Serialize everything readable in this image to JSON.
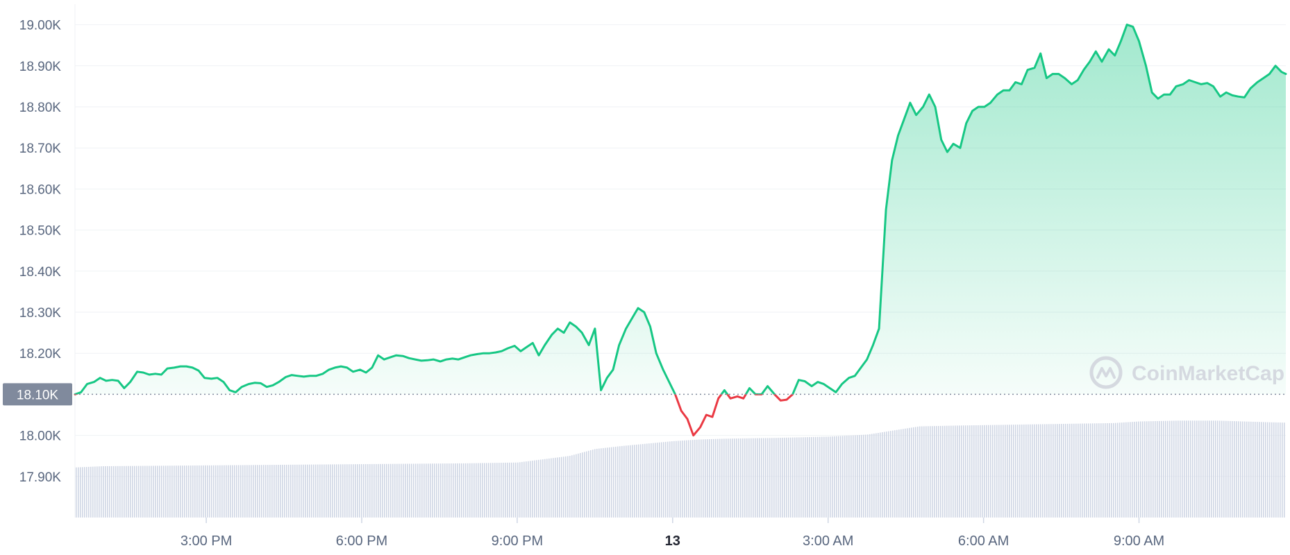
{
  "chart_data": {
    "type": "area",
    "watermark": "CoinMarketCap",
    "reference_label": "18.10K",
    "reference_value": 18.1,
    "colors": {
      "up": "#16c784",
      "down": "#ea3943",
      "volume": "#cfd6e4",
      "grid": "#eff2f5",
      "reference_box": "#808a9d",
      "axis_text": "#58667e"
    },
    "y_axis": {
      "unit": "K",
      "range": [
        17.8,
        19.05
      ],
      "ticks": [
        {
          "value": 17.9,
          "label": "17.90K"
        },
        {
          "value": 18.0,
          "label": "18.00K"
        },
        {
          "value": 18.2,
          "label": "18.20K"
        },
        {
          "value": 18.3,
          "label": "18.30K"
        },
        {
          "value": 18.4,
          "label": "18.40K"
        },
        {
          "value": 18.5,
          "label": "18.50K"
        },
        {
          "value": 18.6,
          "label": "18.60K"
        },
        {
          "value": 18.7,
          "label": "18.70K"
        },
        {
          "value": 18.8,
          "label": "18.80K"
        },
        {
          "value": 18.9,
          "label": "18.90K"
        },
        {
          "value": 19.0,
          "label": "19.00K"
        }
      ]
    },
    "x_axis": {
      "range": [
        "12 12:28",
        "13 11:50"
      ],
      "ticks": [
        {
          "time": "12 15:00",
          "label": "3:00 PM",
          "bold": false
        },
        {
          "time": "12 18:00",
          "label": "6:00 PM",
          "bold": false
        },
        {
          "time": "12 21:00",
          "label": "9:00 PM",
          "bold": false
        },
        {
          "time": "13 00:00",
          "label": "13",
          "bold": true
        },
        {
          "time": "13 03:00",
          "label": "3:00 AM",
          "bold": false
        },
        {
          "time": "13 06:00",
          "label": "6:00 AM",
          "bold": false
        },
        {
          "time": "13 09:00",
          "label": "9:00 AM",
          "bold": false
        }
      ]
    },
    "series": [
      {
        "values_unit": "K",
        "points": [
          [
            "12 12:28",
            18.1
          ],
          [
            "12 12:35",
            18.105
          ],
          [
            "12 12:42",
            18.125
          ],
          [
            "12 12:50",
            18.13
          ],
          [
            "12 12:57",
            18.14
          ],
          [
            "12 13:04",
            18.133
          ],
          [
            "12 13:11",
            18.135
          ],
          [
            "12 13:18",
            18.133
          ],
          [
            "12 13:25",
            18.115
          ],
          [
            "12 13:32",
            18.13
          ],
          [
            "12 13:40",
            18.155
          ],
          [
            "12 13:47",
            18.153
          ],
          [
            "12 13:54",
            18.148
          ],
          [
            "12 14:01",
            18.15
          ],
          [
            "12 14:08",
            18.148
          ],
          [
            "12 14:15",
            18.163
          ],
          [
            "12 14:23",
            18.165
          ],
          [
            "12 14:30",
            18.168
          ],
          [
            "12 14:37",
            18.168
          ],
          [
            "12 14:44",
            18.165
          ],
          [
            "12 14:51",
            18.158
          ],
          [
            "12 14:58",
            18.14
          ],
          [
            "12 15:06",
            18.138
          ],
          [
            "12 15:13",
            18.14
          ],
          [
            "12 15:20",
            18.13
          ],
          [
            "12 15:27",
            18.11
          ],
          [
            "12 15:34",
            18.105
          ],
          [
            "12 15:41",
            18.118
          ],
          [
            "12 15:49",
            18.125
          ],
          [
            "12 15:56",
            18.128
          ],
          [
            "12 16:03",
            18.127
          ],
          [
            "12 16:10",
            18.118
          ],
          [
            "12 16:17",
            18.122
          ],
          [
            "12 16:24",
            18.13
          ],
          [
            "12 16:32",
            18.142
          ],
          [
            "12 16:39",
            18.147
          ],
          [
            "12 16:46",
            18.145
          ],
          [
            "12 16:53",
            18.143
          ],
          [
            "12 17:00",
            18.145
          ],
          [
            "12 17:07",
            18.145
          ],
          [
            "12 17:15",
            18.15
          ],
          [
            "12 17:22",
            18.16
          ],
          [
            "12 17:29",
            18.165
          ],
          [
            "12 17:36",
            18.168
          ],
          [
            "12 17:43",
            18.165
          ],
          [
            "12 17:50",
            18.155
          ],
          [
            "12 17:58",
            18.16
          ],
          [
            "12 18:05",
            18.153
          ],
          [
            "12 18:12",
            18.165
          ],
          [
            "12 18:19",
            18.195
          ],
          [
            "12 18:26",
            18.185
          ],
          [
            "12 18:33",
            18.19
          ],
          [
            "12 18:40",
            18.195
          ],
          [
            "12 18:48",
            18.193
          ],
          [
            "12 18:55",
            18.188
          ],
          [
            "12 19:02",
            18.185
          ],
          [
            "12 19:09",
            18.182
          ],
          [
            "12 19:16",
            18.183
          ],
          [
            "12 19:23",
            18.185
          ],
          [
            "12 19:31",
            18.18
          ],
          [
            "12 19:38",
            18.185
          ],
          [
            "12 19:45",
            18.187
          ],
          [
            "12 19:52",
            18.185
          ],
          [
            "12 19:59",
            18.19
          ],
          [
            "12 20:06",
            18.195
          ],
          [
            "12 20:14",
            18.198
          ],
          [
            "12 20:21",
            18.2
          ],
          [
            "12 20:28",
            18.2
          ],
          [
            "12 20:35",
            18.202
          ],
          [
            "12 20:42",
            18.205
          ],
          [
            "12 20:49",
            18.212
          ],
          [
            "12 20:57",
            18.218
          ],
          [
            "12 21:04",
            18.205
          ],
          [
            "12 21:11",
            18.215
          ],
          [
            "12 21:18",
            18.225
          ],
          [
            "12 21:25",
            18.195
          ],
          [
            "12 21:32",
            18.22
          ],
          [
            "12 21:40",
            18.245
          ],
          [
            "12 21:47",
            18.26
          ],
          [
            "12 21:54",
            18.25
          ],
          [
            "12 22:01",
            18.275
          ],
          [
            "12 22:08",
            18.265
          ],
          [
            "12 22:15",
            18.25
          ],
          [
            "12 22:23",
            18.22
          ],
          [
            "12 22:30",
            18.26
          ],
          [
            "12 22:37",
            18.11
          ],
          [
            "12 22:44",
            18.14
          ],
          [
            "12 22:51",
            18.16
          ],
          [
            "12 22:58",
            18.22
          ],
          [
            "12 23:06",
            18.26
          ],
          [
            "12 23:13",
            18.285
          ],
          [
            "12 23:20",
            18.31
          ],
          [
            "12 23:27",
            18.3
          ],
          [
            "12 23:34",
            18.265
          ],
          [
            "12 23:41",
            18.2
          ],
          [
            "12 23:49",
            18.16
          ],
          [
            "12 23:56",
            18.13
          ],
          [
            "13 00:03",
            18.1
          ],
          [
            "13 00:10",
            18.06
          ],
          [
            "13 00:17",
            18.04
          ],
          [
            "13 00:24",
            18.0
          ],
          [
            "13 00:32",
            18.02
          ],
          [
            "13 00:39",
            18.05
          ],
          [
            "13 00:46",
            18.045
          ],
          [
            "13 00:53",
            18.09
          ],
          [
            "13 01:00",
            18.11
          ],
          [
            "13 01:07",
            18.09
          ],
          [
            "13 01:15",
            18.095
          ],
          [
            "13 01:22",
            18.09
          ],
          [
            "13 01:29",
            18.115
          ],
          [
            "13 01:36",
            18.1
          ],
          [
            "13 01:43",
            18.1
          ],
          [
            "13 01:50",
            18.12
          ],
          [
            "13 01:58",
            18.1
          ],
          [
            "13 02:05",
            18.085
          ],
          [
            "13 02:12",
            18.087
          ],
          [
            "13 02:19",
            18.1
          ],
          [
            "13 02:26",
            18.135
          ],
          [
            "13 02:33",
            18.132
          ],
          [
            "13 02:41",
            18.12
          ],
          [
            "13 02:48",
            18.13
          ],
          [
            "13 02:55",
            18.125
          ],
          [
            "13 03:02",
            18.115
          ],
          [
            "13 03:09",
            18.105
          ],
          [
            "13 03:16",
            18.125
          ],
          [
            "13 03:24",
            18.14
          ],
          [
            "13 03:31",
            18.145
          ],
          [
            "13 03:38",
            18.165
          ],
          [
            "13 03:45",
            18.185
          ],
          [
            "13 03:52",
            18.22
          ],
          [
            "13 03:59",
            18.26
          ],
          [
            "13 04:07",
            18.55
          ],
          [
            "13 04:14",
            18.67
          ],
          [
            "13 04:21",
            18.73
          ],
          [
            "13 04:28",
            18.77
          ],
          [
            "13 04:35",
            18.81
          ],
          [
            "13 04:42",
            18.78
          ],
          [
            "13 04:50",
            18.8
          ],
          [
            "13 04:57",
            18.83
          ],
          [
            "13 05:04",
            18.8
          ],
          [
            "13 05:11",
            18.72
          ],
          [
            "13 05:18",
            18.69
          ],
          [
            "13 05:25",
            18.71
          ],
          [
            "13 05:33",
            18.7
          ],
          [
            "13 05:40",
            18.76
          ],
          [
            "13 05:47",
            18.79
          ],
          [
            "13 05:54",
            18.8
          ],
          [
            "13 06:01",
            18.8
          ],
          [
            "13 06:08",
            18.81
          ],
          [
            "13 06:16",
            18.83
          ],
          [
            "13 06:23",
            18.84
          ],
          [
            "13 06:30",
            18.84
          ],
          [
            "13 06:37",
            18.86
          ],
          [
            "13 06:44",
            18.855
          ],
          [
            "13 06:51",
            18.89
          ],
          [
            "13 06:59",
            18.895
          ],
          [
            "13 07:06",
            18.93
          ],
          [
            "13 07:13",
            18.87
          ],
          [
            "13 07:20",
            18.88
          ],
          [
            "13 07:27",
            18.88
          ],
          [
            "13 07:34",
            18.87
          ],
          [
            "13 07:42",
            18.855
          ],
          [
            "13 07:49",
            18.865
          ],
          [
            "13 07:56",
            18.89
          ],
          [
            "13 08:03",
            18.91
          ],
          [
            "13 08:10",
            18.935
          ],
          [
            "13 08:17",
            18.91
          ],
          [
            "13 08:25",
            18.94
          ],
          [
            "13 08:32",
            18.925
          ],
          [
            "13 08:39",
            18.96
          ],
          [
            "13 08:46",
            19.0
          ],
          [
            "13 08:53",
            18.995
          ],
          [
            "13 09:00",
            18.96
          ],
          [
            "13 09:08",
            18.9
          ],
          [
            "13 09:15",
            18.835
          ],
          [
            "13 09:22",
            18.82
          ],
          [
            "13 09:29",
            18.83
          ],
          [
            "13 09:36",
            18.83
          ],
          [
            "13 09:43",
            18.85
          ],
          [
            "13 09:51",
            18.855
          ],
          [
            "13 09:58",
            18.865
          ],
          [
            "13 10:05",
            18.86
          ],
          [
            "13 10:12",
            18.855
          ],
          [
            "13 10:19",
            18.858
          ],
          [
            "13 10:26",
            18.85
          ],
          [
            "13 10:34",
            18.825
          ],
          [
            "13 10:41",
            18.835
          ],
          [
            "13 10:48",
            18.828
          ],
          [
            "13 10:55",
            18.825
          ],
          [
            "13 11:02",
            18.823
          ],
          [
            "13 11:09",
            18.845
          ],
          [
            "13 11:17",
            18.86
          ],
          [
            "13 11:24",
            18.87
          ],
          [
            "13 11:31",
            18.88
          ],
          [
            "13 11:38",
            18.9
          ],
          [
            "13 11:45",
            18.885
          ],
          [
            "13 11:50",
            18.88
          ]
        ]
      }
    ],
    "volume": {
      "profile": [
        [
          "12 12:28",
          0.0
        ],
        [
          "12 13:00",
          0.003
        ],
        [
          "12 14:00",
          0.004
        ],
        [
          "12 15:00",
          0.005
        ],
        [
          "12 16:00",
          0.006
        ],
        [
          "12 17:00",
          0.007
        ],
        [
          "12 18:00",
          0.008
        ],
        [
          "12 19:00",
          0.009
        ],
        [
          "12 20:00",
          0.01
        ],
        [
          "12 21:00",
          0.012
        ],
        [
          "12 21:30",
          0.02
        ],
        [
          "12 22:00",
          0.028
        ],
        [
          "12 22:30",
          0.045
        ],
        [
          "12 23:00",
          0.052
        ],
        [
          "12 23:30",
          0.058
        ],
        [
          "13 00:00",
          0.064
        ],
        [
          "13 00:30",
          0.068
        ],
        [
          "13 01:00",
          0.07
        ],
        [
          "13 02:00",
          0.072
        ],
        [
          "13 03:00",
          0.075
        ],
        [
          "13 03:45",
          0.08
        ],
        [
          "13 04:15",
          0.09
        ],
        [
          "13 04:45",
          0.1
        ],
        [
          "13 05:30",
          0.102
        ],
        [
          "13 06:30",
          0.104
        ],
        [
          "13 07:30",
          0.106
        ],
        [
          "13 08:30",
          0.108
        ],
        [
          "13 09:00",
          0.112
        ],
        [
          "13 09:45",
          0.114
        ],
        [
          "13 10:30",
          0.114
        ],
        [
          "13 11:00",
          0.112
        ],
        [
          "13 11:30",
          0.11
        ],
        [
          "13 11:50",
          0.109
        ]
      ],
      "baseline_level": 0.122
    }
  }
}
